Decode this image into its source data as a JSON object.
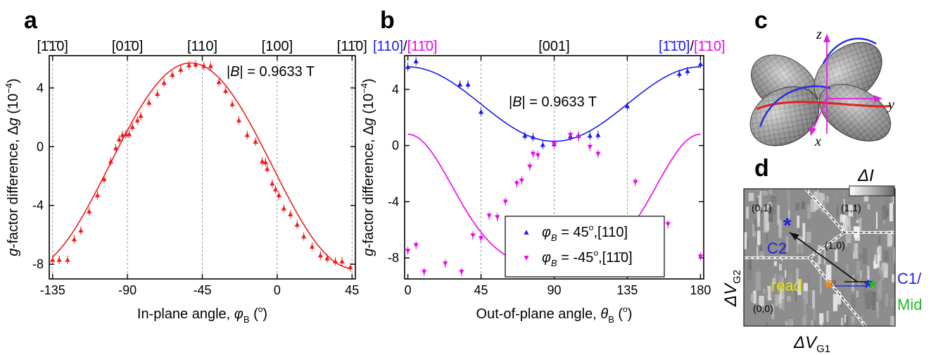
{
  "panel_labels": {
    "a": "a",
    "b": "b",
    "c": "c",
    "d": "d"
  },
  "colors": {
    "red": "#ee1c1c",
    "blue": "#1a1aee",
    "magenta": "#ee00ee",
    "dash": "#999999",
    "orange": "#ff8a00",
    "yellow": "#e6e600",
    "green": "#22bb22",
    "navy": "#2222dd"
  },
  "chart_data": [
    {
      "type": "scatter",
      "panel": "a",
      "xlabel_parts": [
        "In-plane angle, ",
        "φ",
        "B",
        " (",
        "o",
        ")"
      ],
      "ylabel_parts": [
        "g",
        "-factor difference, ",
        "Δ",
        "g",
        " (10",
        "−4",
        ")"
      ],
      "xlim": [
        -137,
        47
      ],
      "ylim": [
        -9,
        6.2
      ],
      "xticks": [
        -135,
        -90,
        -45,
        0,
        45
      ],
      "xtick_labels": [
        "-135",
        "-90",
        "-45",
        "0",
        "45"
      ],
      "yticks": [
        -8,
        -4,
        0,
        4
      ],
      "ytick_labels": [
        "-8",
        "-4",
        "0",
        "4"
      ],
      "vlines": [
        -135,
        -90,
        -45,
        0,
        45
      ],
      "top_ticks": [
        {
          "x": -135,
          "label": "[1̄1̄0]"
        },
        {
          "x": -90,
          "label": "[01̄0]"
        },
        {
          "x": -45,
          "label": "[110]"
        },
        {
          "x": 0,
          "label": "[100]"
        },
        {
          "x": 45,
          "label": "[11̄0]"
        }
      ],
      "annotation": "|B| = 0.9633 T",
      "series": [
        {
          "color": "#ee1c1c",
          "marker": "triangle-up",
          "points": [
            [
              -135,
              -7.7
            ],
            [
              -131,
              -7.7
            ],
            [
              -126,
              -7.7
            ],
            [
              -122,
              -6.3
            ],
            [
              -118,
              -5.7
            ],
            [
              -113,
              -4.4
            ],
            [
              -108,
              -3.3
            ],
            [
              -104,
              -2.2
            ],
            [
              -100,
              -1.0
            ],
            [
              -97,
              -0.1
            ],
            [
              -95,
              0.5
            ],
            [
              -93,
              0.8
            ],
            [
              -91,
              0.85
            ],
            [
              -89,
              0.85
            ],
            [
              -87,
              1.35
            ],
            [
              -84,
              1.8
            ],
            [
              -82,
              2.1
            ],
            [
              -77,
              3.0
            ],
            [
              -72,
              3.6
            ],
            [
              -68,
              4.35
            ],
            [
              -63,
              4.9
            ],
            [
              -58,
              5.25
            ],
            [
              -53,
              5.55
            ],
            [
              -49,
              5.6
            ],
            [
              -44,
              5.5
            ],
            [
              -40,
              5.5
            ],
            [
              -35,
              4.4
            ],
            [
              -31,
              3.8
            ],
            [
              -27,
              2.9
            ],
            [
              -23,
              1.8
            ],
            [
              -18,
              0.8
            ],
            [
              -13,
              0.35
            ],
            [
              -9,
              -1.0
            ],
            [
              -7,
              -1.05
            ],
            [
              -6,
              -1.5
            ],
            [
              -3,
              -2.5
            ],
            [
              -1,
              -2.9
            ],
            [
              1,
              -3.3
            ],
            [
              4,
              -4.2
            ],
            [
              8,
              -4.6
            ],
            [
              12,
              -5.3
            ],
            [
              16,
              -6.1
            ],
            [
              21,
              -6.8
            ],
            [
              26,
              -7.4
            ],
            [
              30,
              -7.6
            ],
            [
              35,
              -7.8
            ],
            [
              39,
              -7.8
            ],
            [
              44,
              -8.2
            ]
          ]
        }
      ],
      "fit": {
        "type": "cosine",
        "center": -52,
        "period": 196,
        "amplitude": 7.0,
        "offset": -1.3
      }
    },
    {
      "type": "scatter",
      "panel": "b",
      "xlabel_parts": [
        "Out-of-plane angle, ",
        "θ",
        "B",
        " (",
        "o",
        ")"
      ],
      "ylabel_parts": [
        "g",
        "-factor difference, ",
        "Δ",
        "g",
        " (10",
        "−4",
        ")"
      ],
      "xlim": [
        -2,
        182
      ],
      "ylim": [
        -9.5,
        6.4
      ],
      "xticks": [
        0,
        45,
        90,
        135,
        180
      ],
      "xtick_labels": [
        "0",
        "45",
        "90",
        "135",
        "180"
      ],
      "yticks": [
        -8,
        -4,
        0,
        4
      ],
      "ytick_labels": [
        "-8",
        "-4",
        "0",
        "4"
      ],
      "vlines": [
        45,
        90,
        135
      ],
      "top_labels": {
        "left_blue": "[110]",
        "left_sep": "/",
        "left_magenta": "[11̄0]",
        "center": "[001]",
        "right_blue": "[1̄1̄0]",
        "right_sep": "/",
        "right_magenta": "[1̄10]"
      },
      "annotation": "|B| = 0.9633 T",
      "legend": {
        "entries": [
          {
            "sym": "φ",
            "sub": "B",
            "text": " =  45",
            "deg": "o",
            "tail": ",[110]",
            "marker": "triangle-up",
            "color": "#1a1aee"
          },
          {
            "sym": "φ",
            "sub": "B",
            "text": " = -45",
            "deg": "o",
            "tail": ",[11̄0]",
            "marker": "triangle-down",
            "color": "#ee00ee"
          }
        ]
      },
      "series": [
        {
          "color": "#1a1aee",
          "marker": "triangle-up",
          "points": [
            [
              0,
              5.6
            ],
            [
              5,
              6.0
            ],
            [
              32,
              4.35
            ],
            [
              37,
              4.35
            ],
            [
              45,
              2.4
            ],
            [
              72,
              0.7
            ],
            [
              77,
              0.6
            ],
            [
              83,
              0.05
            ],
            [
              90,
              0.1
            ],
            [
              100,
              0.65
            ],
            [
              105,
              0.7
            ],
            [
              112,
              0.7
            ],
            [
              117,
              0.75
            ],
            [
              135,
              2.8
            ],
            [
              167,
              5.1
            ],
            [
              172,
              5.3
            ],
            [
              180,
              5.8
            ]
          ],
          "fit": {
            "type": "cos2",
            "a": 2.95,
            "b": 2.65,
            "skew": 0.0
          }
        },
        {
          "color": "#ee00ee",
          "marker": "triangle-down",
          "points": [
            [
              0,
              -7.5
            ],
            [
              5,
              -7.1
            ],
            [
              10,
              -9.0
            ],
            [
              23,
              -8.4
            ],
            [
              33,
              -9.0
            ],
            [
              40,
              -6.4
            ],
            [
              45,
              -6.6
            ],
            [
              50,
              -5.0
            ],
            [
              55,
              -5.1
            ],
            [
              60,
              -4.0
            ],
            [
              67,
              -2.7
            ],
            [
              70,
              -2.5
            ],
            [
              75,
              -1.5
            ],
            [
              77,
              -0.6
            ],
            [
              80,
              -0.7
            ],
            [
              90,
              0.1
            ],
            [
              100,
              0.75
            ],
            [
              105,
              0.6
            ],
            [
              112,
              -0.1
            ],
            [
              117,
              -0.6
            ],
            [
              140,
              -2.6
            ],
            [
              160,
              -5.6
            ],
            [
              180,
              -7.9
            ]
          ],
          "fit": {
            "type": "cos2",
            "a": -3.95,
            "b": 4.75,
            "skew": 14
          }
        }
      ]
    },
    {
      "type": "other",
      "panel": "c",
      "axis_labels": {
        "x": "x",
        "y": "y",
        "z": "z"
      }
    },
    {
      "type": "heatmap",
      "panel": "d",
      "colorbar_label": "ΔI",
      "xlabel": {
        "main": "ΔV",
        "sub": "G1"
      },
      "ylabel": {
        "main": "ΔV",
        "sub": "G2"
      },
      "region_labels": [
        "(0,1)",
        "(1,1)",
        "(1,0)",
        "(0,0)"
      ],
      "markers": {
        "c2": "C2",
        "read": "read",
        "c1": "C1/",
        "mid": "Mid",
        "star": "*"
      }
    }
  ]
}
